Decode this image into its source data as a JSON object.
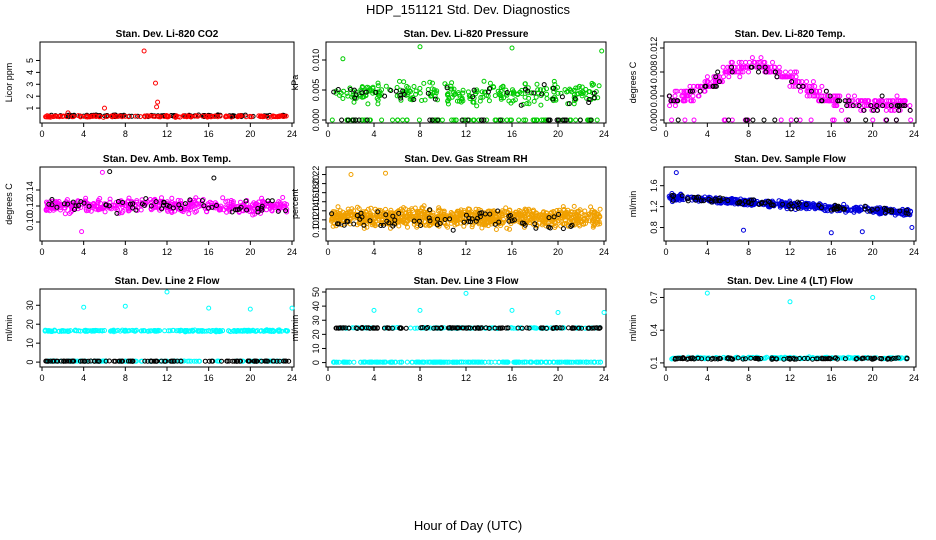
{
  "title": "HDP_151121  Std. Dev. Diagnostics",
  "xlabel": "Hour of Day (UTC)",
  "chart_data": [
    {
      "type": "scatter",
      "title": "Stan. Dev. Li-820 CO2",
      "ylabel": "Licor ppm",
      "xlim": [
        0,
        24
      ],
      "ylim": [
        0,
        6.3
      ],
      "yticks": [
        1,
        2,
        3,
        4,
        5
      ],
      "xticks": [
        0,
        4,
        8,
        12,
        16,
        20,
        24
      ],
      "series": [
        {
          "color": "#000000",
          "base": 0.35,
          "spread": 0.1,
          "n": 110,
          "outliers": []
        },
        {
          "color": "#ff0000",
          "base": 0.3,
          "spread": 0.1,
          "n": 140,
          "outliers": [
            [
              9.8,
              5.8
            ],
            [
              10.9,
              3.1
            ],
            [
              11.1,
              1.5
            ],
            [
              11.0,
              1.1
            ],
            [
              6.0,
              1.0
            ],
            [
              2.5,
              0.6
            ]
          ]
        }
      ]
    },
    {
      "type": "scatter",
      "title": "Stan. Dev. Li-820 Pressure",
      "ylabel": "kPa",
      "xlim": [
        0,
        24
      ],
      "ylim": [
        0,
        0.0125
      ],
      "yticks": [
        0.0,
        0.005,
        0.01
      ],
      "ytick_labels": [
        "0.000",
        "0.005",
        "0.010"
      ],
      "xticks": [
        0,
        4,
        8,
        12,
        16,
        20,
        24
      ],
      "series": [
        {
          "color": "#00cc00",
          "base": 0.0045,
          "spread": 0.0025,
          "n": 260,
          "outliers": [
            [
              8.0,
              0.0122
            ],
            [
              16.0,
              0.012
            ],
            [
              23.8,
              0.0115
            ],
            [
              1.3,
              0.0102
            ]
          ]
        },
        {
          "color": "#00cc00",
          "base": 0.0,
          "spread": 0.0,
          "n": 70,
          "outliers": []
        },
        {
          "color": "#000000",
          "base": 0.004,
          "spread": 0.0025,
          "n": 40,
          "outliers": []
        },
        {
          "color": "#000000",
          "base": 0.0,
          "spread": 0.0,
          "n": 25,
          "outliers": []
        }
      ]
    },
    {
      "type": "scatter",
      "title": "Stan. Dev. Li-820 Temp.",
      "ylabel": "degrees C",
      "xlim": [
        0,
        24
      ],
      "ylim": [
        0,
        0.0125
      ],
      "yticks": [
        0.0,
        0.004,
        0.008,
        0.012
      ],
      "ytick_labels": [
        "0.000",
        "0.004",
        "0.008",
        "0.012"
      ],
      "xticks": [
        0,
        4,
        8,
        12,
        16,
        20,
        24
      ],
      "series": [
        {
          "color": "#ff00ff",
          "profile": "hump",
          "n": 380,
          "outliers": []
        },
        {
          "color": "#ff00ff",
          "base": 0.0,
          "spread": 0.0,
          "n": 20,
          "outliers": []
        },
        {
          "color": "#000000",
          "profile": "hump",
          "n": 60,
          "outliers": []
        },
        {
          "color": "#000000",
          "base": 0.0,
          "spread": 0.0,
          "n": 12,
          "outliers": []
        }
      ]
    },
    {
      "type": "scatter",
      "title": "Stan. Dev. Amb. Box Temp.",
      "ylabel": "degrees C",
      "xlim": [
        0,
        24
      ],
      "ylim": [
        0.08,
        0.165
      ],
      "yticks": [
        0.1,
        0.12,
        0.14
      ],
      "ytick_labels": [
        "0.10",
        "0.12",
        "0.14"
      ],
      "xticks": [
        0,
        4,
        8,
        12,
        16,
        20,
        24
      ],
      "series": [
        {
          "color": "#ff00ff",
          "base": 0.12,
          "spread": 0.013,
          "n": 420,
          "outliers": [
            [
              5.8,
              0.162
            ],
            [
              3.8,
              0.088
            ]
          ]
        },
        {
          "color": "#000000",
          "base": 0.12,
          "spread": 0.013,
          "n": 60,
          "outliers": [
            [
              6.5,
              0.163
            ],
            [
              16.5,
              0.155
            ]
          ]
        }
      ]
    },
    {
      "type": "scatter",
      "title": "Stan. Dev. Gas Stream RH",
      "ylabel": "percent",
      "xlim": [
        0,
        24
      ],
      "ylim": [
        0.08,
        0.23
      ],
      "yticks": [
        0.1,
        0.12,
        0.14,
        0.16,
        0.18,
        0.2,
        0.22
      ],
      "ytick_labels": [
        "0.10",
        "0.12",
        "0.14",
        "0.16",
        "0.18",
        "0.20",
        "0.22"
      ],
      "xticks": [
        0,
        4,
        8,
        12,
        16,
        20,
        24
      ],
      "series": [
        {
          "color": "#f0a000",
          "base": 0.125,
          "spread": 0.03,
          "n": 900,
          "outliers": [
            [
              2.0,
              0.22
            ],
            [
              5.0,
              0.223
            ]
          ]
        },
        {
          "color": "#000000",
          "base": 0.12,
          "spread": 0.028,
          "n": 70,
          "outliers": []
        }
      ]
    },
    {
      "type": "scatter",
      "title": "Stan. Dev. Sample Flow",
      "ylabel": "ml/min",
      "xlim": [
        0,
        24
      ],
      "ylim": [
        0.6,
        1.9
      ],
      "yticks": [
        0.8,
        1.2,
        1.6
      ],
      "ytick_labels": [
        "0.8",
        "1.2",
        "1.6"
      ],
      "xticks": [
        0,
        4,
        8,
        12,
        16,
        20,
        24
      ],
      "series": [
        {
          "color": "#0000dd",
          "profile": "decline",
          "n": 500,
          "outliers": [
            [
              1.0,
              1.85
            ],
            [
              7.5,
              0.75
            ],
            [
              16.0,
              0.7
            ],
            [
              19.0,
              0.72
            ],
            [
              23.8,
              0.8
            ]
          ]
        },
        {
          "color": "#000000",
          "profile": "decline",
          "n": 80,
          "outliers": []
        }
      ]
    },
    {
      "type": "scatter",
      "title": "Stan. Dev. Line 2 Flow",
      "ylabel": "ml/min",
      "xlim": [
        0,
        24
      ],
      "ylim": [
        -1,
        37
      ],
      "yticks": [
        0,
        10,
        20,
        30
      ],
      "ytick_labels": [
        "0",
        "10",
        "20",
        "30"
      ],
      "xticks": [
        0,
        4,
        8,
        12,
        16,
        20,
        24
      ],
      "series": [
        {
          "color": "#00ffff",
          "base": 16.5,
          "spread": 0.6,
          "n": 220,
          "outliers": [
            [
              4.0,
              29
            ],
            [
              8.0,
              29.5
            ],
            [
              12.0,
              37
            ],
            [
              16.0,
              28.5
            ],
            [
              20.0,
              28
            ],
            [
              24.0,
              28.5
            ]
          ]
        },
        {
          "color": "#00ffff",
          "base": 0.5,
          "spread": 0.1,
          "n": 100,
          "outliers": []
        },
        {
          "color": "#000000",
          "base": 0.5,
          "spread": 0.1,
          "n": 110,
          "outliers": []
        }
      ]
    },
    {
      "type": "scatter",
      "title": "Stan. Dev. Line 3 Flow",
      "ylabel": "ml/min",
      "xlim": [
        0,
        24
      ],
      "ylim": [
        -1,
        50
      ],
      "yticks": [
        0,
        10,
        20,
        30,
        40,
        50
      ],
      "ytick_labels": [
        "0",
        "10",
        "20",
        "30",
        "40",
        "50"
      ],
      "xticks": [
        0,
        4,
        8,
        12,
        16,
        20,
        24
      ],
      "series": [
        {
          "color": "#00ffff",
          "base": 24.5,
          "spread": 0.5,
          "n": 120,
          "outliers": [
            [
              4.0,
              37
            ],
            [
              8.0,
              37
            ],
            [
              12.0,
              49
            ],
            [
              16.0,
              37
            ],
            [
              20.0,
              35.5
            ],
            [
              24.0,
              35.5
            ]
          ]
        },
        {
          "color": "#00ffff",
          "base": 0.3,
          "spread": 0.1,
          "n": 220,
          "outliers": []
        },
        {
          "color": "#000000",
          "base": 24.5,
          "spread": 0.5,
          "n": 120,
          "outliers": []
        }
      ]
    },
    {
      "type": "scatter",
      "title": "Stan. Dev. Line 4 (LT) Flow",
      "ylabel": "ml/min",
      "xlim": [
        0,
        24
      ],
      "ylim": [
        0.09,
        0.75
      ],
      "yticks": [
        0.1,
        0.4,
        0.7
      ],
      "ytick_labels": [
        "0.1",
        "0.4",
        "0.7"
      ],
      "xticks": [
        0,
        4,
        8,
        12,
        16,
        20,
        24
      ],
      "series": [
        {
          "color": "#00ffff",
          "base": 0.145,
          "spread": 0.012,
          "n": 170,
          "outliers": [
            [
              4.0,
              0.74
            ],
            [
              12.0,
              0.66
            ],
            [
              20.0,
              0.7
            ]
          ]
        },
        {
          "color": "#000000",
          "base": 0.14,
          "spread": 0.01,
          "n": 100,
          "outliers": []
        }
      ]
    }
  ]
}
